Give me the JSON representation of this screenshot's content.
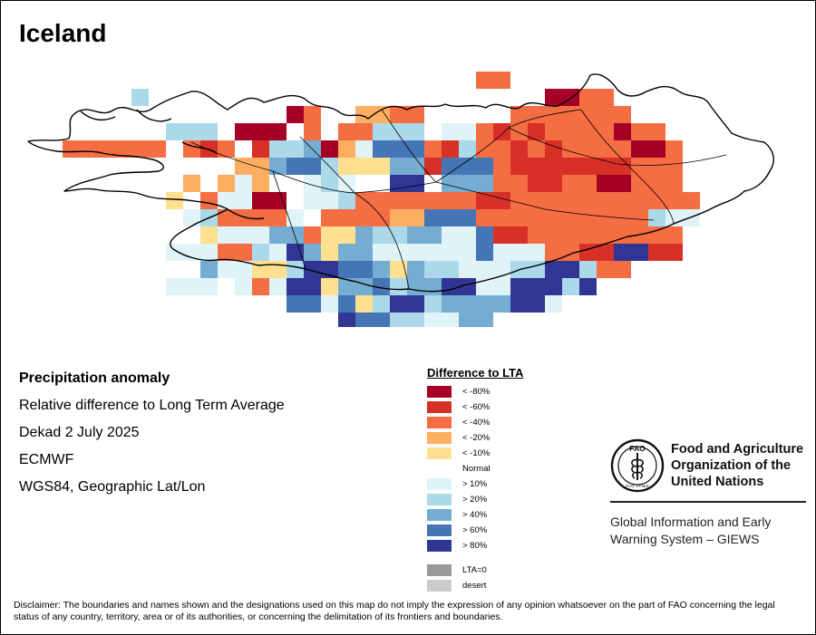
{
  "title": "Iceland",
  "info": {
    "line1": "Precipitation anomaly",
    "line2": "Relative difference to Long Term Average",
    "line3": "Dekad 2 July 2025",
    "line4": "ECMWF",
    "line5": "WGS84, Geographic Lat/Lon"
  },
  "legend": {
    "title": "Difference to LTA",
    "items": [
      {
        "label": "< -80%",
        "color": "#A50026"
      },
      {
        "label": "< -60%",
        "color": "#D73027"
      },
      {
        "label": "< -40%",
        "color": "#F46D43"
      },
      {
        "label": "< -20%",
        "color": "#FDAE61"
      },
      {
        "label": "< -10%",
        "color": "#FEE090"
      },
      {
        "label": "Normal",
        "color": "#FFFFFF"
      },
      {
        "label": "> 10%",
        "color": "#E0F3F8"
      },
      {
        "label": "> 20%",
        "color": "#ABD9E9"
      },
      {
        "label": "> 40%",
        "color": "#74ADD1"
      },
      {
        "label": "> 60%",
        "color": "#4575B4"
      },
      {
        "label": "> 80%",
        "color": "#313695"
      },
      {
        "label": "LTA=0",
        "color": "#999999"
      },
      {
        "label": "desert",
        "color": "#CCCCCC"
      }
    ]
  },
  "fao": {
    "logo_top": "FAO",
    "logo_motto": "FIAT PANIS",
    "name_line1": "Food and Agriculture",
    "name_line2": "Organization of the",
    "name_line3": "United Nations",
    "giews_line1": "Global Information and Early",
    "giews_line2": "Warning System – GIEWS"
  },
  "disclaimer": "Disclaimer: The boundaries and names shown and the designations used on this map do not imply the expression of any opinion whatsoever on the part of FAO concerning the legal status of any country, territory, area or of its authorities, or concerning the delimitation of its frontiers and boundaries.",
  "map_grid": {
    "rows": [
      "..........................LL......",
      "......l.......................VVLL.",
      "...............VN..ffLL.....LLLLLLL.",
      "........lll.VVV.N.NNlll.nnLRLRNLLLVLL.",
      "..NNNLLL.NRL.RPlqVfnAhhLRlLNRNRLLLLVVL.",
      "............ffrhhPpppqqRhhhLRRRRRRRLLL",
      ".........f.fnf..nPn..QQ.rrrLLRRLLVVLLL",
      "........p.LnnVV.nnPLLLLLLLRRLLNNLLLLLLL.",
      ".........nPLLNNn.LLLLffhhhLLLLLLLLLLPnn",
      "..........pnnnqqLppqPPqqnnhRRLLLLLLLNL.",
      "........nnnLLPnQqpqqnnnnnnhnnnLLRRQQRR.",
      "..........rnnppPQQhhrpqPlnnnPPQQPLL..",
      "........nnn.nLnQQpqrhPrrQQnnQQQlQ.",
      "...............hhnhpPQQlrrrrQQn..",
      "..................QhhPPnnrr.",
      "....................LhnhhL."
    ]
  }
}
